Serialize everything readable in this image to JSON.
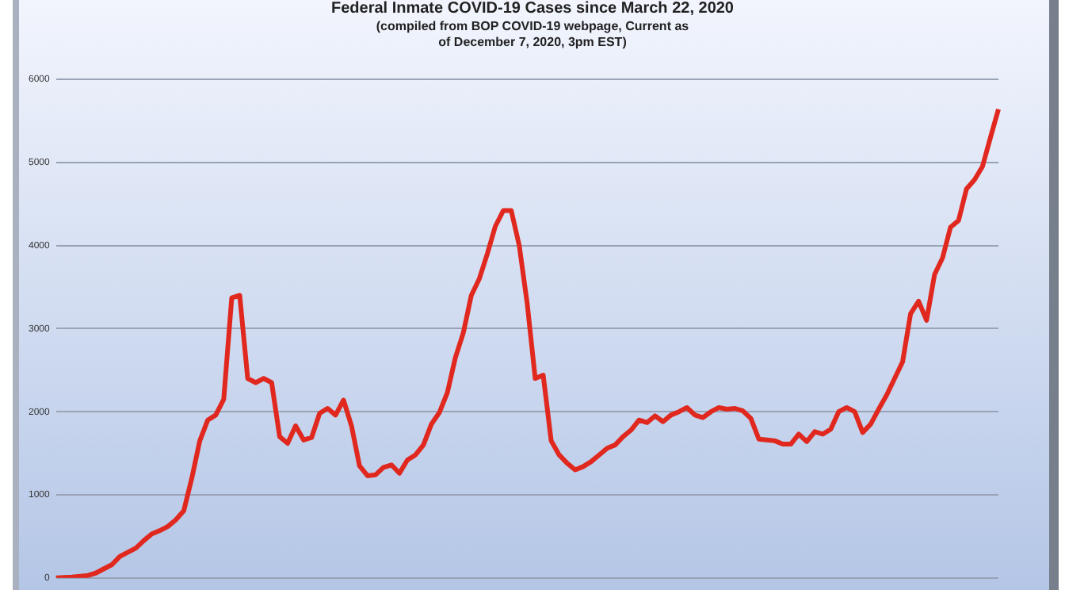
{
  "chart_data": {
    "type": "line",
    "title": "Federal Inmate COVID-19 Cases since March 22, 2020",
    "subtitle": "(compiled from BOP COVID-19 webpage, Current as of December 7, 2020, 3pm EST)",
    "categories": [
      null,
      null,
      null,
      null,
      null,
      null,
      null,
      null,
      null,
      null,
      null,
      null,
      null,
      null,
      null,
      null,
      null,
      null,
      null,
      null,
      null,
      null,
      null,
      null,
      null,
      null,
      null,
      null,
      null,
      null,
      null,
      null,
      null,
      null,
      null,
      null,
      null,
      null,
      null,
      null,
      null,
      null,
      null,
      null,
      null,
      null,
      null,
      null,
      null,
      null,
      null,
      null,
      null,
      null,
      null,
      null,
      null,
      null,
      null,
      null,
      null,
      null,
      null,
      null,
      null,
      null,
      null,
      null,
      null,
      null,
      null,
      null,
      null,
      null,
      null,
      null,
      null,
      null,
      null,
      null,
      null,
      null,
      null,
      null,
      null,
      null,
      null,
      null,
      null,
      null,
      null,
      null,
      null,
      null,
      null,
      null,
      null,
      null,
      null,
      null,
      null,
      null,
      null,
      null,
      null,
      null,
      null,
      null,
      null,
      null,
      null,
      null,
      null,
      null,
      null,
      null,
      null,
      null,
      null
    ],
    "series": [
      {
        "color": "#e0281e",
        "values": [
          0,
          5,
          10,
          20,
          30,
          60,
          110,
          160,
          260,
          310,
          360,
          450,
          530,
          570,
          620,
          700,
          810,
          1200,
          1650,
          1900,
          1960,
          2150,
          3370,
          3400,
          2400,
          2350,
          2400,
          2350,
          1700,
          1620,
          1830,
          1660,
          1690,
          1980,
          2040,
          1960,
          2140,
          1830,
          1350,
          1230,
          1240,
          1330,
          1360,
          1260,
          1420,
          1480,
          1600,
          1850,
          1990,
          2230,
          2650,
          2950,
          3400,
          3600,
          3900,
          4230,
          4420,
          4420,
          4000,
          3300,
          2400,
          2440,
          1650,
          1480,
          1380,
          1300,
          1340,
          1400,
          1480,
          1560,
          1600,
          1700,
          1780,
          1900,
          1870,
          1950,
          1880,
          1960,
          2000,
          2050,
          1960,
          1930,
          2000,
          2050,
          2030,
          2040,
          2010,
          1920,
          1670,
          1660,
          1650,
          1610,
          1610,
          1730,
          1640,
          1760,
          1730,
          1790,
          2000,
          2050,
          2000,
          1750,
          1850,
          2030,
          2200,
          2400,
          2600,
          3180,
          3330,
          3100,
          3650,
          3850,
          4220,
          4300,
          4680,
          4790,
          4950,
          5300,
          5640
        ]
      }
    ],
    "ylim": [
      0,
      6000
    ],
    "yticks": [
      0,
      1000,
      2000,
      3000,
      4000,
      5000,
      6000
    ],
    "grid": "y",
    "legend": false,
    "marker": "none",
    "line_style": "solid"
  }
}
